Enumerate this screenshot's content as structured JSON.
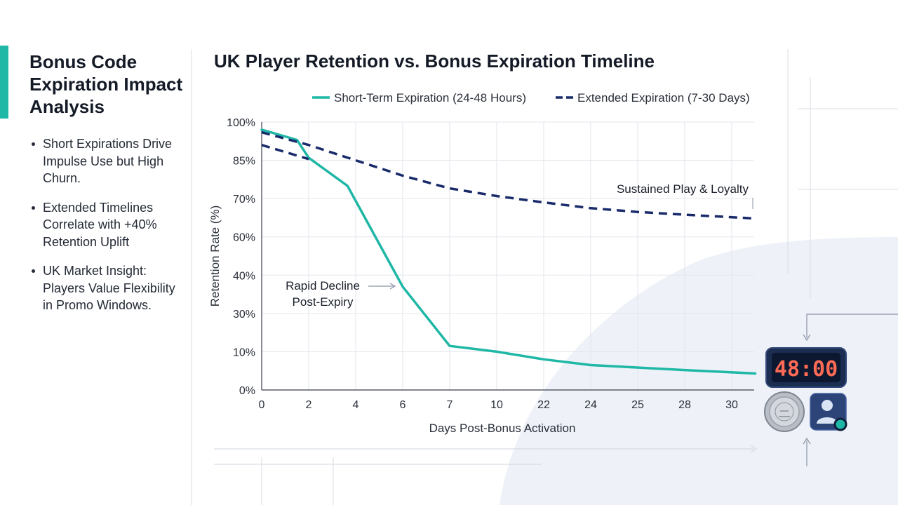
{
  "sidebar": {
    "title": "Bonus Code Expiration Impact Analysis",
    "bullets": [
      "Short Expirations Drive Impulse Use but High Churn.",
      "Extended Timelines Correlate with +40% Retention Uplift",
      "UK Market Insight: Players Value Flexibility in Promo Windows."
    ]
  },
  "icons": {
    "timer_display": "48:00",
    "coin": "pound-coin-icon",
    "user": "user-online-icon"
  },
  "colors": {
    "short_term": "#1fb7a6",
    "extended": "#1a2b6b",
    "accent": "#1fb7a6",
    "panel": "#eef2f8"
  },
  "chart_data": {
    "type": "line",
    "title": "UK Player Retention vs. Bonus Expiration Timeline",
    "xlabel": "Days Post-Bonus Activation",
    "ylabel": "Retention Rate (%)",
    "x": [
      "0",
      "2",
      "4",
      "6",
      "7",
      "10",
      "22",
      "24",
      "25",
      "28",
      "30"
    ],
    "y_ticks": [
      "0%",
      "10%",
      "30%",
      "40%",
      "60%",
      "70%",
      "85%",
      "100%"
    ],
    "grid": true,
    "legend_position": "top",
    "series": [
      {
        "name": "Short-Term Expiration (24-48 Hours)",
        "style": "solid",
        "points": [
          [
            0,
            97
          ],
          [
            1.5,
            93
          ],
          [
            2,
            86
          ],
          [
            3.65,
            75
          ],
          [
            6,
            37
          ],
          [
            7,
            13
          ],
          [
            10,
            10
          ],
          [
            22,
            8
          ],
          [
            24,
            6.5
          ],
          [
            28,
            5.2
          ],
          [
            31,
            4.3
          ]
        ]
      },
      {
        "name": "Extended Expiration (7-30 Days)",
        "style": "dashed",
        "points": [
          [
            0,
            96
          ],
          [
            2,
            91
          ],
          [
            4,
            85
          ],
          [
            6,
            79
          ],
          [
            7,
            74
          ],
          [
            10,
            71
          ],
          [
            22,
            69
          ],
          [
            24,
            67.5
          ],
          [
            25,
            66.5
          ],
          [
            28,
            65.8
          ],
          [
            31,
            64.8
          ]
        ]
      },
      {
        "name": "Extended Expiration (7-30 Days)",
        "style": "dashed",
        "points": [
          [
            0,
            91
          ],
          [
            2,
            85.5
          ]
        ]
      }
    ],
    "annotations": [
      {
        "text": [
          "Rapid Decline",
          "Post-Expiry"
        ]
      },
      {
        "text": [
          "Sustained Play & Loyalty"
        ]
      }
    ]
  }
}
